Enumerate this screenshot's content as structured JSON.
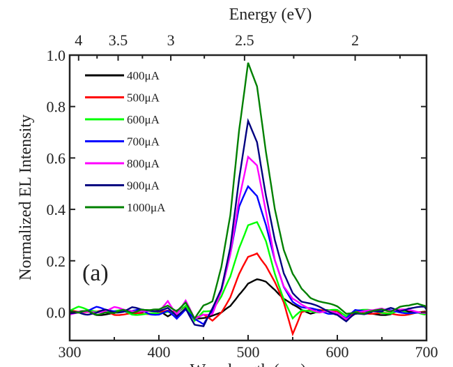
{
  "chart_data": {
    "type": "line",
    "xlabel": "Wavelength (nm)",
    "ylabel": "Normalized EL Intensity",
    "top_axis_label": "Energy (eV)",
    "top_axis_ticks": [
      4,
      3.5,
      3,
      2.5,
      2
    ],
    "xlim": [
      300,
      700
    ],
    "ylim": [
      -0.11,
      1.0
    ],
    "xticks": [
      300,
      400,
      500,
      600,
      700
    ],
    "yticks": [
      "0.0",
      "0.2",
      "0.4",
      "0.6",
      "0.8",
      "1.0"
    ],
    "grid": false,
    "legend_placement": "top-left",
    "annotation": "(a)",
    "x": [
      300,
      310,
      320,
      330,
      340,
      350,
      360,
      370,
      380,
      390,
      400,
      410,
      420,
      430,
      440,
      450,
      460,
      470,
      480,
      490,
      500,
      510,
      520,
      530,
      540,
      550,
      560,
      570,
      580,
      590,
      600,
      610,
      620,
      630,
      640,
      650,
      660,
      670,
      680,
      690,
      700
    ],
    "series": [
      {
        "name": "400μA",
        "color": "#000000",
        "values": [
          0.0,
          0.0,
          0.01,
          0.0,
          0.0,
          0.0,
          0.01,
          0.0,
          0.0,
          0.0,
          0.0,
          -0.02,
          0.0,
          0.01,
          -0.03,
          -0.02,
          -0.01,
          0.0,
          0.03,
          0.08,
          0.12,
          0.13,
          0.12,
          0.09,
          0.05,
          0.02,
          0.0,
          -0.01,
          0.0,
          0.0,
          -0.01,
          -0.02,
          0.0,
          0.0,
          0.0,
          0.0,
          0.0,
          0.01,
          0.0,
          0.0,
          0.0
        ]
      },
      {
        "name": "500μA",
        "color": "#ff0000",
        "values": [
          0.0,
          0.0,
          0.0,
          0.0,
          0.01,
          0.0,
          0.0,
          0.0,
          0.0,
          0.0,
          0.0,
          0.0,
          -0.01,
          0.02,
          -0.03,
          -0.02,
          -0.04,
          0.0,
          0.06,
          0.15,
          0.22,
          0.24,
          0.19,
          0.12,
          0.04,
          -0.08,
          0.0,
          0.0,
          0.0,
          0.0,
          0.0,
          -0.04,
          0.0,
          0.0,
          0.0,
          0.0,
          0.0,
          0.0,
          0.0,
          0.0,
          0.0
        ]
      },
      {
        "name": "600μA",
        "color": "#00ff00",
        "values": [
          0.0,
          0.01,
          0.0,
          0.0,
          0.0,
          0.0,
          0.01,
          0.0,
          0.0,
          0.0,
          0.0,
          0.01,
          0.0,
          0.02,
          -0.04,
          0.0,
          0.0,
          0.05,
          0.13,
          0.25,
          0.34,
          0.35,
          0.28,
          0.16,
          0.06,
          -0.02,
          0.01,
          0.01,
          0.0,
          0.0,
          0.0,
          -0.02,
          0.0,
          0.0,
          0.0,
          0.0,
          0.0,
          0.01,
          0.0,
          0.01,
          0.0
        ]
      },
      {
        "name": "700μA",
        "color": "#0000ff",
        "values": [
          0.0,
          0.0,
          0.0,
          0.01,
          0.0,
          0.0,
          0.0,
          0.0,
          0.01,
          0.0,
          0.0,
          0.01,
          -0.02,
          0.02,
          -0.02,
          -0.05,
          0.0,
          0.08,
          0.22,
          0.4,
          0.48,
          0.45,
          0.34,
          0.2,
          0.1,
          0.05,
          0.03,
          0.02,
          0.01,
          0.0,
          0.0,
          -0.03,
          0.0,
          0.0,
          0.0,
          0.0,
          0.0,
          0.0,
          0.0,
          0.0,
          0.0
        ]
      },
      {
        "name": "800μA",
        "color": "#ff00ff",
        "values": [
          0.0,
          0.0,
          0.0,
          0.0,
          0.0,
          0.01,
          0.0,
          0.0,
          0.0,
          0.0,
          0.0,
          0.05,
          0.0,
          0.05,
          -0.02,
          0.0,
          0.0,
          0.08,
          0.22,
          0.44,
          0.6,
          0.56,
          0.38,
          0.2,
          0.1,
          0.05,
          0.03,
          0.02,
          0.01,
          0.01,
          0.0,
          -0.02,
          0.0,
          0.0,
          0.0,
          0.01,
          0.0,
          0.0,
          0.0,
          0.0,
          0.0
        ]
      },
      {
        "name": "900μA",
        "color": "#000080",
        "values": [
          0.0,
          0.01,
          0.0,
          0.0,
          0.01,
          0.0,
          0.0,
          0.01,
          0.0,
          0.0,
          0.0,
          0.01,
          -0.02,
          0.02,
          -0.04,
          -0.05,
          0.02,
          0.1,
          0.26,
          0.52,
          0.74,
          0.66,
          0.45,
          0.27,
          0.14,
          0.07,
          0.04,
          0.03,
          0.02,
          0.01,
          0.0,
          -0.03,
          0.0,
          0.0,
          0.01,
          0.0,
          0.01,
          0.0,
          0.01,
          0.01,
          0.01
        ]
      },
      {
        "name": "1000μA",
        "color": "#008000",
        "values": [
          0.01,
          0.0,
          0.01,
          0.0,
          0.01,
          0.0,
          0.01,
          0.0,
          0.01,
          0.0,
          0.0,
          0.02,
          0.0,
          0.03,
          -0.03,
          0.03,
          0.05,
          0.18,
          0.38,
          0.72,
          0.98,
          0.88,
          0.62,
          0.4,
          0.24,
          0.14,
          0.08,
          0.05,
          0.04,
          0.03,
          0.02,
          0.0,
          0.01,
          0.0,
          0.01,
          0.02,
          0.01,
          0.02,
          0.02,
          0.03,
          0.02
        ]
      }
    ]
  }
}
